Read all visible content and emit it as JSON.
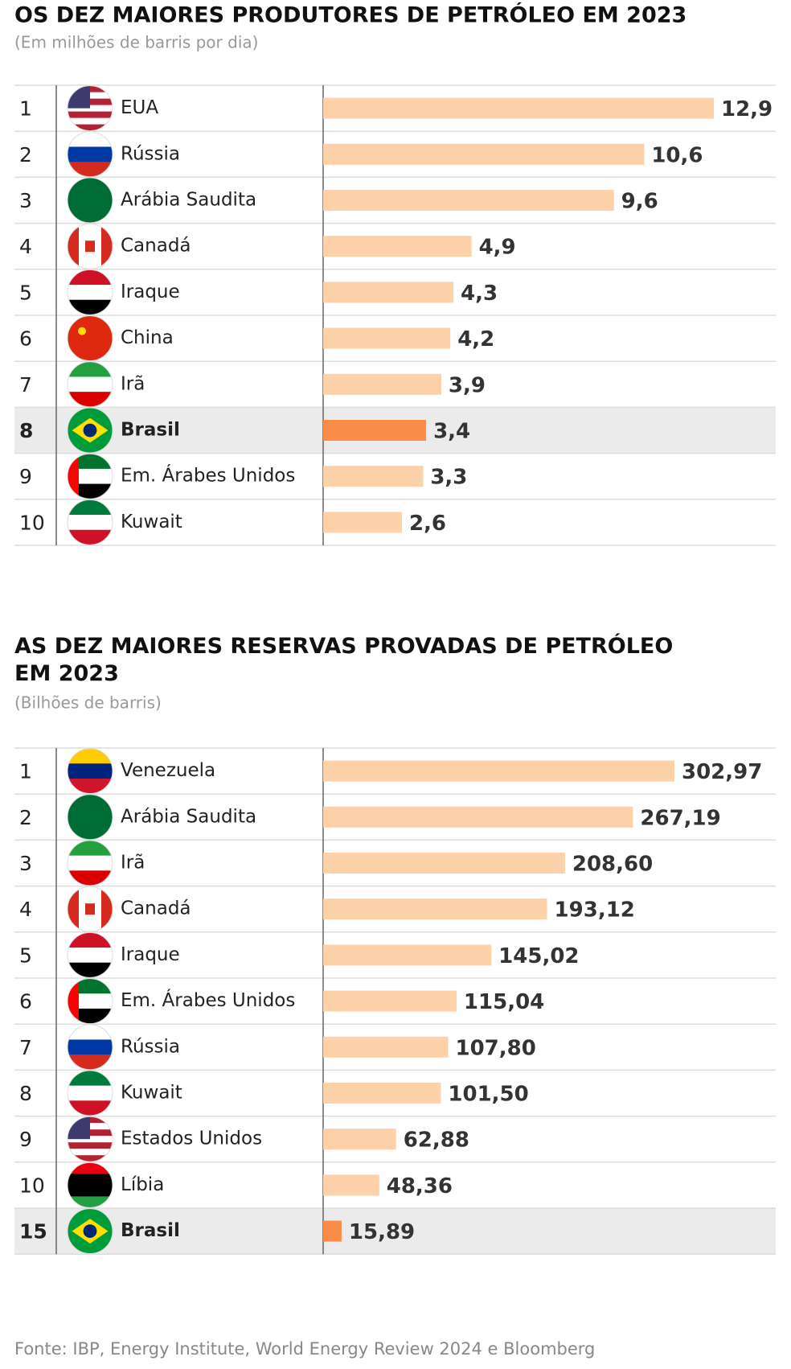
{
  "chart_data": [
    {
      "type": "bar",
      "title": "OS DEZ MAIORES PRODUTORES DE PETRÓLEO EM 2023",
      "subtitle": "(Em milhões de barris por dia)",
      "ranks": [
        1,
        2,
        3,
        4,
        5,
        6,
        7,
        8,
        9,
        10
      ],
      "categories": [
        "EUA",
        "Rússia",
        "Arábia Saudita",
        "Canadá",
        "Iraque",
        "China",
        "Irã",
        "Brasil",
        "Em. Árabes Unidos",
        "Kuwait"
      ],
      "values": [
        12.9,
        10.6,
        9.6,
        4.9,
        4.3,
        4.2,
        3.9,
        3.4,
        3.3,
        2.6
      ],
      "value_labels": [
        "12,9",
        "10,6",
        "9,6",
        "4,9",
        "4,3",
        "4,2",
        "3,9",
        "3,4",
        "3,3",
        "2,6"
      ],
      "color": "#fdd1aa",
      "highlight_color": "#fb8d4b",
      "highlight_row": 7
    },
    {
      "type": "bar",
      "title": "AS DEZ MAIORES RESERVAS PROVADAS DE PETRÓLEO EM 2023",
      "subtitle": "(Bilhões de barris)",
      "ranks": [
        1,
        2,
        3,
        4,
        5,
        6,
        7,
        8,
        9,
        10,
        15
      ],
      "categories": [
        "Venezuela",
        "Arábia Saudita",
        "Irã",
        "Canadá",
        "Iraque",
        "Em. Árabes Unidos",
        "Rússia",
        "Kuwait",
        "Estados Unidos",
        "Líbia",
        "Brasil"
      ],
      "values": [
        302.97,
        267.19,
        208.6,
        193.12,
        145.02,
        115.04,
        107.8,
        101.5,
        62.88,
        48.36,
        15.89
      ],
      "value_labels": [
        "302,97",
        "267,19",
        "208,60",
        "193,12",
        "145,02",
        "115,04",
        "107,80",
        "101,50",
        "62,88",
        "48,36",
        "15,89"
      ],
      "color": "#fdd1aa",
      "highlight_color": "#fb8d4b",
      "highlight_row": 10
    }
  ],
  "source": "Fonte: IBP, Energy Institute,  World Energy Review 2024 e Bloomberg"
}
